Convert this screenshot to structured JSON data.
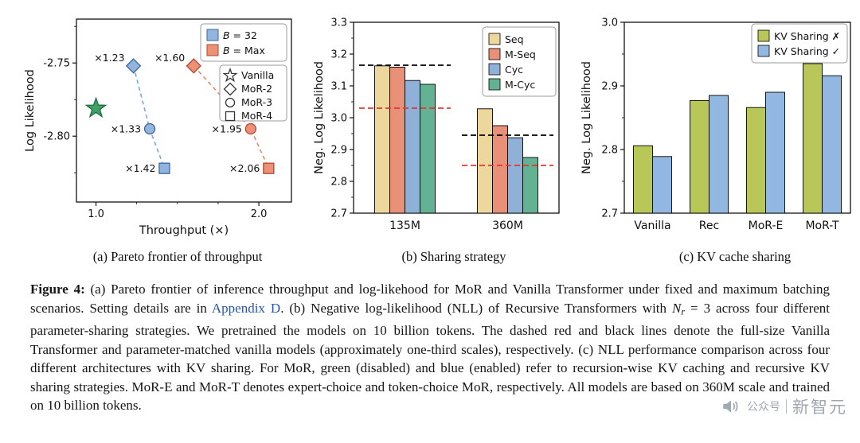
{
  "figure": {
    "subcaptions": {
      "a": "(a) Pareto frontier of throughput",
      "b": "(b) Sharing strategy",
      "c": "(c) KV cache sharing"
    },
    "caption_segments": [
      {
        "style": "bold",
        "text": "Figure 4:"
      },
      {
        "style": "normal",
        "text": " (a) Pareto frontier of inference throughput and log-likehood for MoR and Vanilla Transformer under fixed and maximum batching scenarios. Setting details are in "
      },
      {
        "style": "link",
        "text": "Appendix D"
      },
      {
        "style": "normal",
        "text": ". (b) Negative log-likelihood (NLL) of Recursive Transformers with "
      },
      {
        "style": "mathvar",
        "text": "N"
      },
      {
        "style": "mathsub",
        "text": "r"
      },
      {
        "style": "normal",
        "text": " = 3 across four different parameter-sharing strategies. We pretrained the models on 10 billion tokens. The dashed red and black lines denote the full-size Vanilla Transformer and parameter-matched vanilla models (approximately one-third scales), respectively. (c) NLL performance comparison across four different architectures with KV sharing. For MoR, green (disabled) and blue (enabled) refer to recursion-wise KV caching and recursive KV sharing strategies. MoR-E and MoR-T denotes expert-choice and token-choice MoR, respectively. All models are based on 360M scale and trained on 10 billion tokens."
      }
    ]
  },
  "watermark": {
    "label": "公众号",
    "name": "新智元"
  },
  "chart_data": [
    {
      "panel": "a",
      "type": "scatter",
      "title": "",
      "xlabel": "Throughput (×)",
      "ylabel": "Log Likelihood",
      "xlim": [
        0.88,
        2.2
      ],
      "ylim": [
        -2.845,
        -2.72
      ],
      "xticks": [
        1.0,
        2.0
      ],
      "xtick_labels": [
        "1.0",
        "2.0"
      ],
      "xminor": [
        1.25,
        1.5,
        1.75
      ],
      "yticks": [
        -2.75,
        -2.8
      ],
      "ytick_labels": [
        "-2.75",
        "-2.80"
      ],
      "yminor": [
        -2.725,
        -2.775,
        -2.825
      ],
      "series": [
        {
          "name": "Vanilla",
          "marker": "star",
          "fill": "#43a065",
          "edge": "#1c6e41",
          "points": [
            {
              "x": 1.0,
              "y": -2.781
            }
          ]
        },
        {
          "name": "B = 32",
          "line_color": "#7aa6d8",
          "fill": "#92b4dd",
          "edge": "#39689f",
          "points": [
            {
              "x": 1.23,
              "y": -2.752,
              "marker": "diamond",
              "label": "×1.23"
            },
            {
              "x": 1.33,
              "y": -2.795,
              "marker": "circle",
              "label": "×1.33"
            },
            {
              "x": 1.42,
              "y": -2.822,
              "marker": "square",
              "label": "×1.42"
            }
          ]
        },
        {
          "name": "B = Max",
          "line_color": "#e78a6f",
          "fill": "#ec9077",
          "edge": "#b04a2e",
          "points": [
            {
              "x": 1.6,
              "y": -2.752,
              "marker": "diamond",
              "label": "×1.60"
            },
            {
              "x": 1.95,
              "y": -2.795,
              "marker": "circle",
              "label": "×1.95"
            },
            {
              "x": 2.06,
              "y": -2.822,
              "marker": "square",
              "label": "×2.06"
            }
          ]
        }
      ],
      "legend_batch": [
        {
          "label_var": "B",
          "label_rest": " = 32",
          "fill": "#92b4dd",
          "edge": "#39689f"
        },
        {
          "label_var": "B",
          "label_rest": " = Max",
          "fill": "#ec9077",
          "edge": "#b04a2e"
        }
      ],
      "legend_models": [
        {
          "label": "Vanilla",
          "marker": "star"
        },
        {
          "label": "MoR-2",
          "marker": "diamond"
        },
        {
          "label": "MoR-3",
          "marker": "circle"
        },
        {
          "label": "MoR-4",
          "marker": "square"
        }
      ]
    },
    {
      "panel": "b",
      "type": "bar",
      "title": "",
      "xlabel": "",
      "ylabel": "Neg. Log Likelihood",
      "ylim": [
        2.7,
        3.3
      ],
      "yticks": [
        2.7,
        2.8,
        2.9,
        3.0,
        3.1,
        3.2,
        3.3
      ],
      "categories": [
        "135M",
        "360M"
      ],
      "series": [
        {
          "name": "Seq",
          "color": "#ecd79d",
          "values": [
            3.163,
            3.028
          ]
        },
        {
          "name": "M-Seq",
          "color": "#e89078",
          "values": [
            3.159,
            2.975
          ]
        },
        {
          "name": "Cyc",
          "color": "#8fb1d8",
          "values": [
            3.117,
            2.937
          ]
        },
        {
          "name": "M-Cyc",
          "color": "#63b293",
          "values": [
            3.105,
            2.875
          ]
        }
      ],
      "dashed_lines": [
        {
          "category_index": 0,
          "value": 3.165,
          "color": "#000000",
          "meaning": "parameter-matched vanilla"
        },
        {
          "category_index": 0,
          "value": 3.03,
          "color": "#e03a2f",
          "meaning": "full-size Vanilla Transformer"
        },
        {
          "category_index": 1,
          "value": 2.945,
          "color": "#000000",
          "meaning": "parameter-matched vanilla"
        },
        {
          "category_index": 1,
          "value": 2.85,
          "color": "#e03a2f",
          "meaning": "full-size Vanilla Transformer"
        }
      ],
      "legend_position": "top-right"
    },
    {
      "panel": "c",
      "type": "bar",
      "title": "",
      "xlabel": "",
      "ylabel": "Neg. Log Likelihood",
      "ylim": [
        2.7,
        3.0
      ],
      "yticks": [
        2.7,
        2.8,
        2.9,
        3.0
      ],
      "categories": [
        "Vanilla",
        "Rec",
        "MoR-E",
        "MoR-T"
      ],
      "series": [
        {
          "name": "KV Sharing ✗",
          "color": "#b8c757",
          "values": [
            2.806,
            2.877,
            2.866,
            2.935
          ]
        },
        {
          "name": "KV Sharing ✓",
          "color": "#92b7e0",
          "values": [
            2.789,
            2.885,
            2.89,
            2.916
          ]
        }
      ],
      "legend_position": "top-right"
    }
  ]
}
